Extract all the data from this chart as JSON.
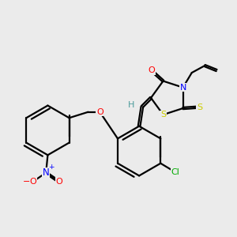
{
  "bg_color": "#ebebeb",
  "fig_size": [
    3.0,
    3.0
  ],
  "dpi": 100,
  "colors": {
    "C": "#000000",
    "N": "#0000ff",
    "O": "#ff0000",
    "S": "#cccc00",
    "Cl": "#00aa00",
    "H": "#4a9a9a",
    "bond": "#000000"
  },
  "lw": 1.6,
  "fs": 8.0
}
